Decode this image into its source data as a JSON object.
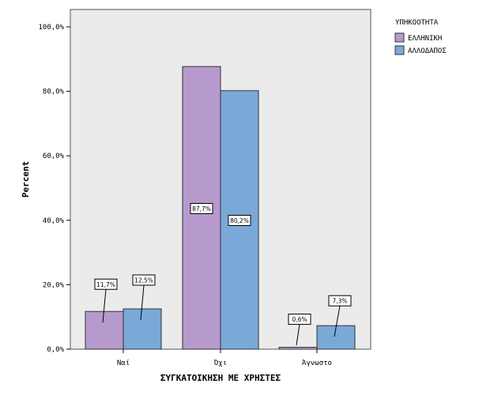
{
  "chart_data": {
    "type": "bar",
    "xlabel": "ΣΥΓΚΑΤΟΙΚΗΣΗ ΜΕ ΧΡΗΣΤΕΣ",
    "ylabel": "Percent",
    "categories": [
      "Ναί",
      "Όχι",
      "Άγνωστο"
    ],
    "ylim": [
      0,
      100
    ],
    "yticks": [
      "0,0%",
      "20,0%",
      "40,0%",
      "60,0%",
      "80,0%",
      "100,0%"
    ],
    "ytick_values": [
      0,
      20,
      40,
      60,
      80,
      100
    ],
    "legend_title": "ΥΠΗΚΟΟΤΗΤΑ",
    "legend_position": "top-right",
    "series": [
      {
        "name": "ΕΛΛΗΝΙΚΗ",
        "color": "#b79acd",
        "values": [
          11.7,
          87.7,
          0.6
        ],
        "labels": [
          "11,7%",
          "87,7%",
          "0,6%"
        ]
      },
      {
        "name": "ΑΛΛΟΔΑΠΟΣ",
        "color": "#7aa9d8",
        "values": [
          12.5,
          80.2,
          7.3
        ],
        "labels": [
          "12,5%",
          "80,2%",
          "7,3%"
        ]
      }
    ],
    "plot_background": "#ebebeb"
  }
}
